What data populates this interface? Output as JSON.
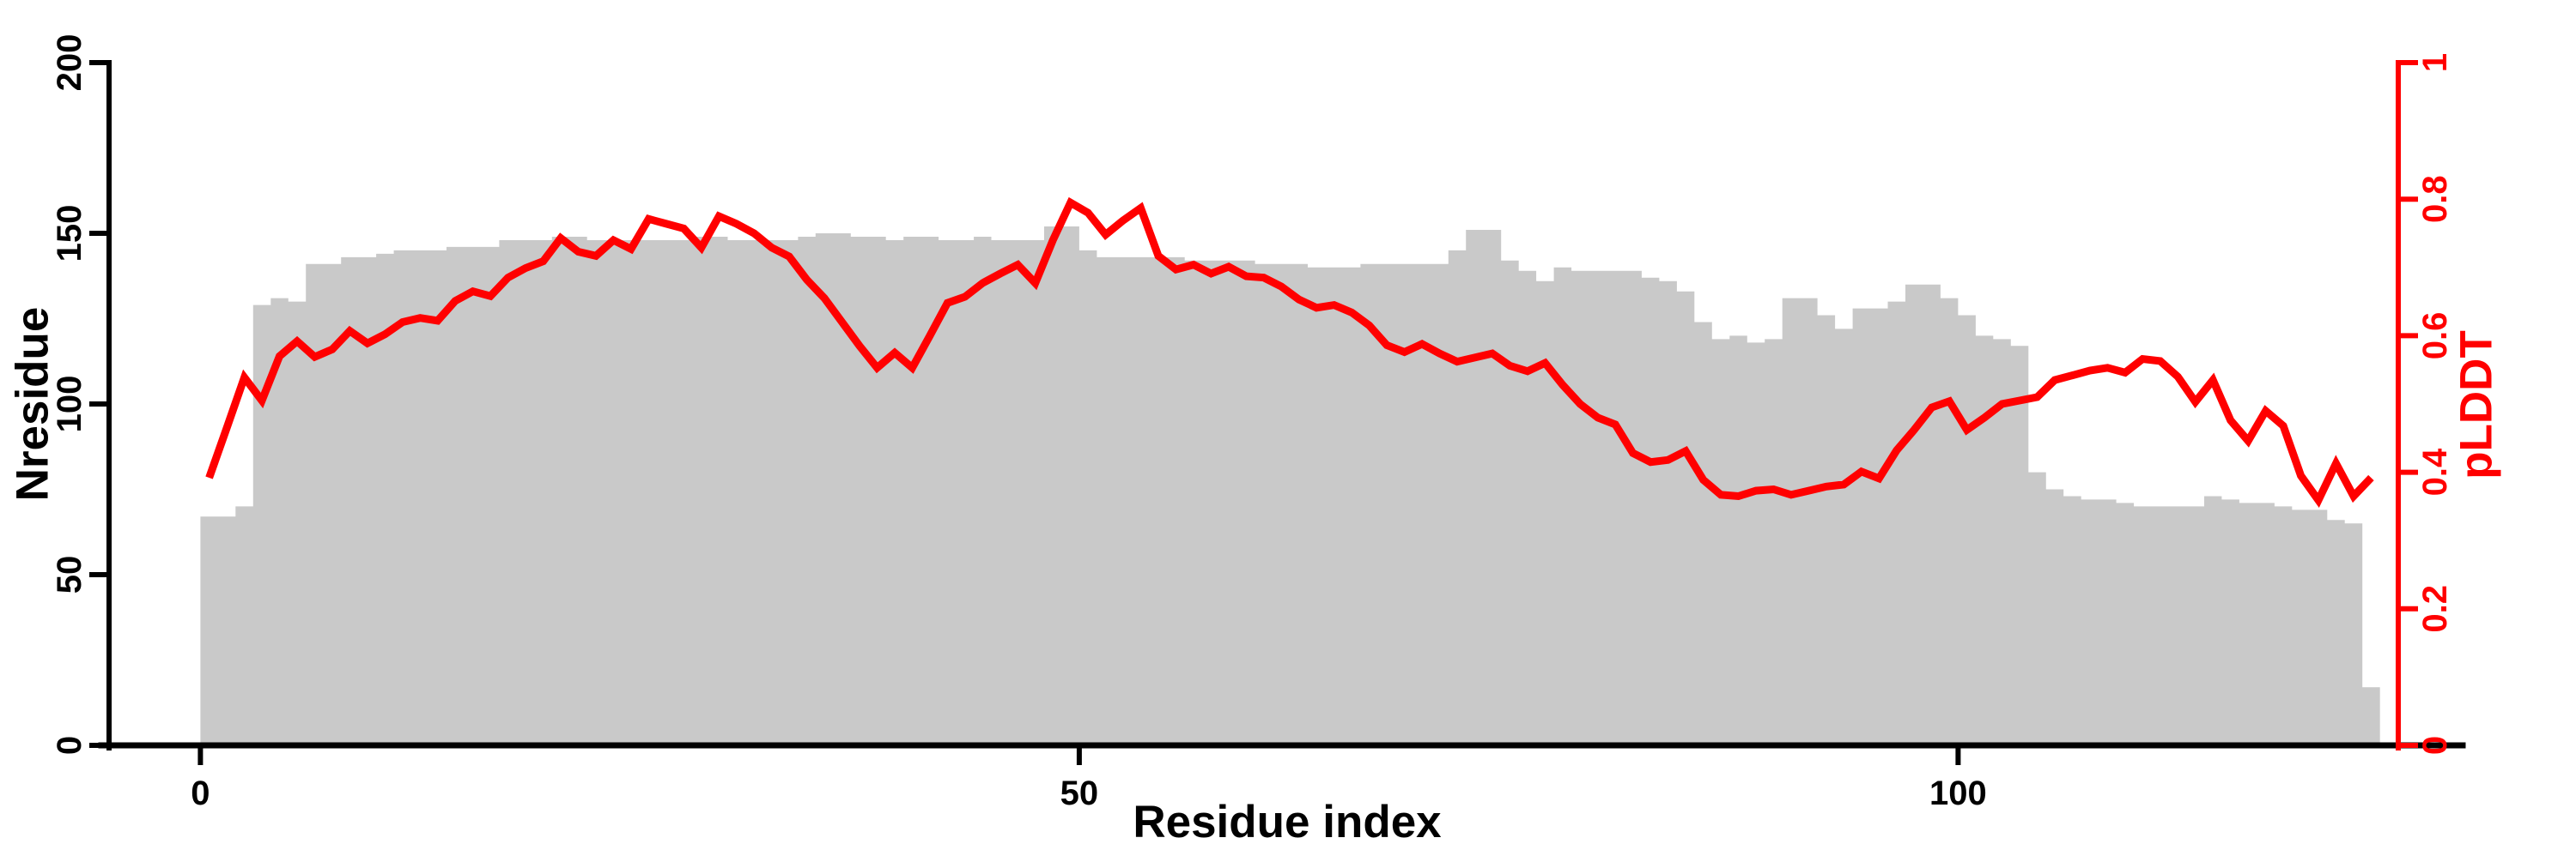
{
  "chart_data": {
    "type": "bar",
    "subtype": "histogram-with-line-overlay",
    "title": "",
    "xlabel": "Residue index",
    "ylabel_left": "Nresidue",
    "ylabel_right": "pLDDT",
    "x_ticks": [
      0,
      50,
      100
    ],
    "x_range": [
      0,
      124
    ],
    "y_left_ticks": [
      0,
      50,
      100,
      150,
      200
    ],
    "y_left_range": [
      0,
      200
    ],
    "y_right_ticks": [
      "0",
      "0.2",
      "0.4",
      "0.6",
      "0.8",
      "1"
    ],
    "y_right_range": [
      0,
      1
    ],
    "grid": false,
    "legend_position": "none",
    "colors": {
      "bar_fill": "#C9C9C9",
      "line": "#FF0000",
      "left_axis": "#000000",
      "bottom_axis": "#000000",
      "right_axis": "#FF0000",
      "background": "#FFFFFF"
    },
    "series": [
      {
        "name": "Nresidue",
        "type": "bar",
        "axis": "left",
        "x_start": 0,
        "bin_width": 1,
        "values": [
          67,
          67,
          70,
          129,
          131,
          130,
          141,
          141,
          143,
          143,
          144,
          145,
          145,
          145,
          146,
          146,
          146,
          148,
          148,
          148,
          149,
          149,
          148,
          148,
          148,
          148,
          148,
          148,
          149,
          149,
          148,
          148,
          148,
          148,
          149,
          150,
          150,
          149,
          149,
          148,
          149,
          149,
          148,
          148,
          149,
          148,
          148,
          148,
          152,
          152,
          145,
          143,
          143,
          143,
          143,
          143,
          142,
          142,
          142,
          142,
          141,
          141,
          141,
          140,
          140,
          140,
          141,
          141,
          141,
          141,
          141,
          145,
          151,
          151,
          142,
          139,
          136,
          140,
          139,
          139,
          139,
          139,
          137,
          136,
          133,
          124,
          119,
          120,
          118,
          119,
          131,
          131,
          126,
          122,
          128,
          128,
          130,
          135,
          135,
          131,
          126,
          120,
          119,
          117,
          80,
          75,
          73,
          72,
          72,
          71,
          70,
          70,
          70,
          70,
          73,
          72,
          71,
          71,
          70,
          69,
          69,
          66,
          65,
          17
        ]
      },
      {
        "name": "pLDDT",
        "type": "line",
        "axis": "right",
        "x_offset": 0.5,
        "values": [
          0.392,
          0.465,
          0.539,
          0.505,
          0.57,
          0.592,
          0.569,
          0.58,
          0.607,
          0.589,
          0.602,
          0.62,
          0.626,
          0.622,
          0.651,
          0.665,
          0.658,
          0.685,
          0.699,
          0.709,
          0.743,
          0.723,
          0.717,
          0.74,
          0.727,
          0.771,
          0.764,
          0.757,
          0.729,
          0.775,
          0.764,
          0.75,
          0.729,
          0.716,
          0.682,
          0.655,
          0.62,
          0.585,
          0.553,
          0.575,
          0.553,
          0.6,
          0.648,
          0.657,
          0.677,
          0.691,
          0.704,
          0.677,
          0.74,
          0.795,
          0.78,
          0.748,
          0.769,
          0.787,
          0.717,
          0.697,
          0.704,
          0.691,
          0.701,
          0.687,
          0.685,
          0.672,
          0.653,
          0.641,
          0.645,
          0.634,
          0.615,
          0.586,
          0.576,
          0.588,
          0.574,
          0.562,
          0.568,
          0.574,
          0.556,
          0.548,
          0.56,
          0.528,
          0.5,
          0.48,
          0.47,
          0.428,
          0.415,
          0.418,
          0.431,
          0.389,
          0.367,
          0.365,
          0.373,
          0.375,
          0.367,
          0.373,
          0.379,
          0.382,
          0.401,
          0.391,
          0.432,
          0.462,
          0.495,
          0.504,
          0.462,
          0.48,
          0.5,
          0.505,
          0.51,
          0.535,
          0.542,
          0.549,
          0.553,
          0.546,
          0.566,
          0.563,
          0.54,
          0.503,
          0.535,
          0.476,
          0.446,
          0.49,
          0.468,
          0.395,
          0.359,
          0.413,
          0.365,
          0.392
        ]
      }
    ]
  }
}
